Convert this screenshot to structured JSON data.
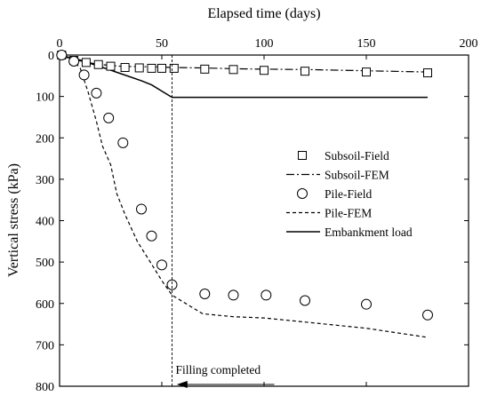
{
  "chart_data": {
    "type": "scatter",
    "xlabel": "Elapsed time (days)",
    "ylabel": "Vertical stress (kPa)",
    "x_axis_position": "top",
    "y_axis_inverted": true,
    "xlim": [
      0,
      200
    ],
    "ylim": [
      0,
      800
    ],
    "xticks": [
      0,
      50,
      100,
      150,
      200
    ],
    "yticks": [
      0,
      100,
      200,
      300,
      400,
      500,
      600,
      700,
      800
    ],
    "grid": false,
    "legend_position": "right-center",
    "series": [
      {
        "name": "Subsoil-Field",
        "kind": "marker",
        "marker": "square",
        "x": [
          1,
          7,
          13,
          19,
          25,
          32,
          39,
          45,
          50,
          56,
          71,
          85,
          100,
          120,
          150,
          180
        ],
        "y": [
          0,
          13,
          18,
          23,
          27,
          30,
          31,
          32,
          32,
          32,
          34,
          35,
          37,
          39,
          41,
          43
        ]
      },
      {
        "name": "Subsoil-FEM",
        "kind": "line",
        "dash": "dash-dot",
        "x": [
          0,
          5,
          10,
          15,
          20,
          25,
          30,
          40,
          50,
          55,
          70,
          85,
          100,
          120,
          150,
          180
        ],
        "y": [
          0,
          8,
          14,
          19,
          23,
          25,
          27,
          28,
          29,
          30,
          31,
          33,
          34,
          35,
          38,
          41
        ]
      },
      {
        "name": "Pile-Field",
        "kind": "marker",
        "marker": "circle",
        "x": [
          1,
          7,
          12,
          18,
          24,
          31,
          40,
          45,
          50,
          55,
          71,
          85,
          101,
          120,
          150,
          180
        ],
        "y": [
          0,
          15,
          48,
          92,
          152,
          212,
          372,
          437,
          507,
          555,
          577,
          580,
          580,
          593,
          602,
          628
        ]
      },
      {
        "name": "Pile-FEM",
        "kind": "line",
        "dash": "dashed",
        "x": [
          0,
          5,
          10,
          14,
          18,
          21,
          25,
          28,
          32,
          38,
          45,
          50,
          55,
          70,
          85,
          100,
          120,
          150,
          180
        ],
        "y": [
          0,
          8,
          30,
          90,
          160,
          220,
          265,
          335,
          385,
          450,
          505,
          545,
          580,
          625,
          632,
          635,
          645,
          660,
          682
        ]
      },
      {
        "name": "Embankment load",
        "kind": "line",
        "dash": "solid",
        "x": [
          0,
          10,
          20,
          30,
          40,
          45,
          50,
          55,
          100,
          180
        ],
        "y": [
          0,
          12,
          28,
          45,
          62,
          72,
          87,
          102,
          102,
          102
        ]
      }
    ],
    "annotations": [
      {
        "text": "Filling completed",
        "x_line": 55,
        "arrow_from": 105,
        "arrow_to": 56,
        "arrow_y": 770
      }
    ]
  }
}
